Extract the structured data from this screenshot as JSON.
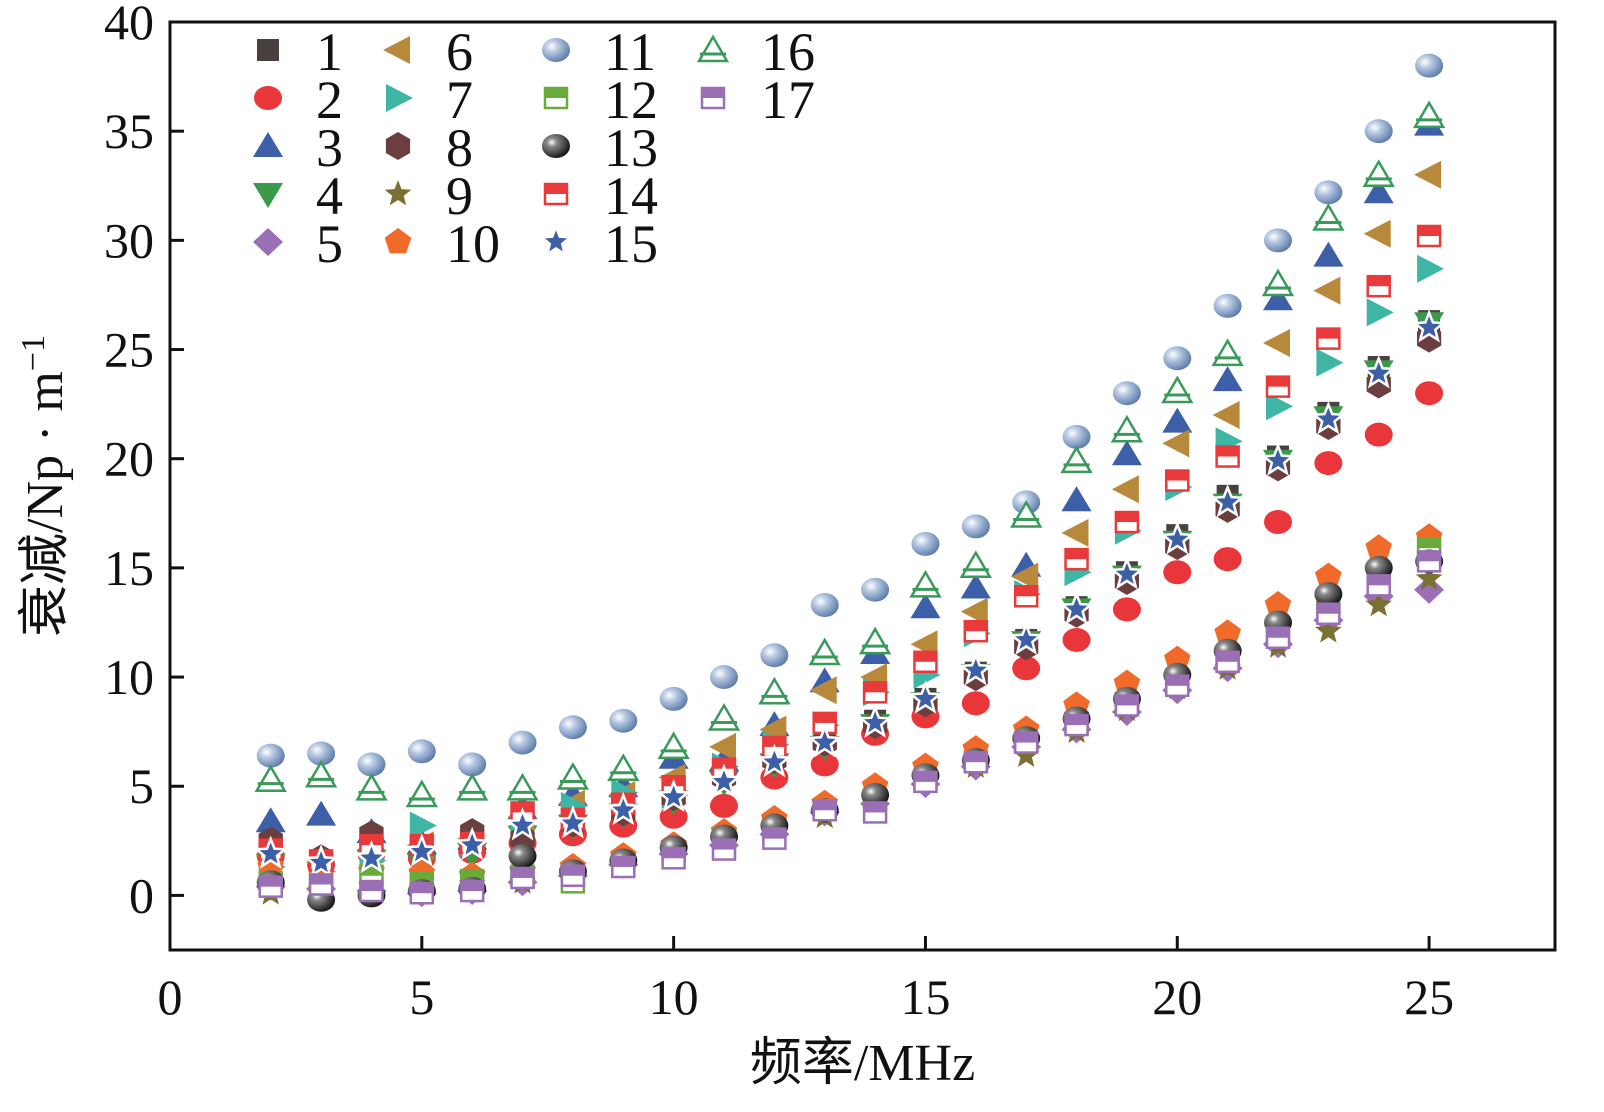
{
  "chart_data": {
    "type": "scatter",
    "title": "",
    "xlabel": "频率/MHz",
    "ylabel": "衰减/Np · m",
    "ylabel_superscript": "−1",
    "xlim": [
      0,
      27.5
    ],
    "ylim": [
      -2.5,
      40
    ],
    "xticks": [
      0,
      5,
      10,
      15,
      20,
      25
    ],
    "yticks": [
      0,
      5,
      10,
      15,
      20,
      25,
      30,
      35,
      40
    ],
    "grid": false,
    "legend_position": "top-left",
    "x": [
      2,
      3,
      4,
      5,
      6,
      7,
      8,
      9,
      10,
      11,
      12,
      13,
      14,
      15,
      16,
      17,
      18,
      19,
      20,
      21,
      22,
      23,
      24,
      25
    ],
    "series": [
      {
        "name": "1",
        "marker": "square",
        "color": "#4a4040",
        "values": [
          2.2,
          1.6,
          2.4,
          2.2,
          2.5,
          3.0,
          3.4,
          4.0,
          4.8,
          5.6,
          6.4,
          7.2,
          8.0,
          9.0,
          10.2,
          11.7,
          13.2,
          14.8,
          16.5,
          18.3,
          20.1,
          22.1,
          24.2,
          26.3
        ]
      },
      {
        "name": "2",
        "marker": "circle",
        "color": "#e8363a",
        "values": [
          1.8,
          1.4,
          1.9,
          1.7,
          2.0,
          2.4,
          2.8,
          3.2,
          3.6,
          4.1,
          5.4,
          6.0,
          7.4,
          8.2,
          8.8,
          10.4,
          11.7,
          13.1,
          14.8,
          15.4,
          17.1,
          19.8,
          21.1,
          23.0
        ]
      },
      {
        "name": "3",
        "marker": "triangle-up",
        "color": "#3d5fa8",
        "values": [
          3.4,
          3.7,
          2.9,
          2.4,
          2.6,
          4.0,
          4.6,
          5.0,
          6.3,
          6.2,
          7.8,
          9.8,
          11.1,
          13.2,
          14.1,
          15.1,
          18.1,
          20.2,
          21.7,
          23.6,
          27.3,
          29.3,
          32.2,
          35.3
        ]
      },
      {
        "name": "4",
        "marker": "triangle-down",
        "color": "#3a9a4a",
        "values": [
          1.4,
          1.2,
          1.6,
          1.4,
          1.9,
          2.7,
          3.2,
          3.7,
          4.3,
          5.2,
          6.0,
          6.8,
          7.8,
          8.8,
          10.1,
          11.6,
          13.1,
          14.6,
          16.2,
          17.9,
          19.9,
          21.9,
          24.0,
          26.2
        ]
      },
      {
        "name": "5",
        "marker": "diamond",
        "color": "#9b6fb5",
        "values": [
          0.4,
          0.3,
          0.2,
          0.1,
          0.2,
          0.6,
          0.9,
          1.4,
          1.9,
          2.3,
          2.8,
          3.8,
          4.2,
          5.1,
          5.9,
          6.8,
          7.6,
          8.4,
          9.4,
          10.4,
          11.5,
          12.6,
          13.7,
          14.0
        ]
      },
      {
        "name": "6",
        "marker": "triangle-left",
        "color": "#b8893a",
        "values": [
          1.8,
          1.5,
          2.1,
          2.3,
          2.6,
          3.6,
          4.2,
          4.6,
          5.4,
          6.8,
          7.6,
          9.4,
          10.0,
          11.5,
          13.0,
          14.6,
          16.6,
          18.6,
          20.7,
          22.0,
          25.3,
          27.7,
          30.3,
          33.0
        ]
      },
      {
        "name": "7",
        "marker": "triangle-right",
        "color": "#3fb5a5",
        "values": [
          1.3,
          1.1,
          1.6,
          3.2,
          2.4,
          3.4,
          4.1,
          4.7,
          4.6,
          5.9,
          6.9,
          7.8,
          9.3,
          10.1,
          12.0,
          13.8,
          14.8,
          16.7,
          18.7,
          20.8,
          22.4,
          24.4,
          26.7,
          28.7
        ]
      },
      {
        "name": "8",
        "marker": "hexagon",
        "color": "#6b3f3f",
        "values": [
          2.5,
          1.7,
          2.8,
          2.2,
          2.9,
          2.6,
          3.3,
          3.8,
          4.5,
          5.4,
          6.2,
          7.0,
          7.8,
          8.8,
          10.0,
          11.4,
          12.9,
          14.4,
          16.0,
          17.7,
          19.6,
          21.5,
          23.4,
          25.5
        ]
      },
      {
        "name": "9",
        "marker": "star",
        "color": "#7a7032",
        "values": [
          0.1,
          0.2,
          0.4,
          0.3,
          0.5,
          0.6,
          1.0,
          1.5,
          1.9,
          2.5,
          3.2,
          3.6,
          4.3,
          5.3,
          5.9,
          6.4,
          7.5,
          8.5,
          9.5,
          10.4,
          11.4,
          12.1,
          13.3,
          14.5
        ]
      },
      {
        "name": "10",
        "marker": "pentagon",
        "color": "#f06a2a",
        "values": [
          1.3,
          1.0,
          1.1,
          1.0,
          0.9,
          1.1,
          1.3,
          1.8,
          2.3,
          2.9,
          3.5,
          4.2,
          5.0,
          5.9,
          6.7,
          7.6,
          8.7,
          9.7,
          10.8,
          12.0,
          13.3,
          14.6,
          15.9,
          16.4
        ]
      },
      {
        "name": "11",
        "marker": "sphere",
        "color": "#7a97c2",
        "values": [
          6.4,
          6.5,
          6.0,
          6.6,
          6.0,
          7.0,
          7.7,
          8.0,
          9.0,
          10.0,
          11.0,
          13.3,
          14.0,
          16.1,
          16.9,
          18.0,
          21.0,
          23.0,
          24.6,
          27.0,
          30.0,
          32.2,
          35.0,
          38.0
        ]
      },
      {
        "name": "12",
        "marker": "square-half",
        "color": "#6aaa3a",
        "values": [
          0.6,
          0.5,
          0.9,
          0.6,
          0.7,
          0.9,
          0.6,
          1.4,
          2.0,
          2.6,
          3.0,
          3.9,
          4.4,
          5.3,
          6.1,
          7.0,
          7.9,
          8.8,
          9.8,
          10.9,
          12.1,
          13.4,
          14.7,
          15.9
        ]
      },
      {
        "name": "13",
        "marker": "dark-sphere",
        "color": "#2b2b2b",
        "values": [
          0.6,
          -0.2,
          0.0,
          0.2,
          0.3,
          1.8,
          1.1,
          1.6,
          2.2,
          2.7,
          3.2,
          3.9,
          4.6,
          5.5,
          6.2,
          7.2,
          8.1,
          9.0,
          10.1,
          11.2,
          12.5,
          13.8,
          15.0,
          15.3
        ]
      },
      {
        "name": "14",
        "marker": "square-half",
        "color": "#e83a3a",
        "values": [
          2.1,
          1.6,
          2.3,
          2.3,
          2.4,
          3.8,
          3.5,
          4.2,
          5.0,
          5.8,
          6.8,
          7.9,
          9.3,
          10.7,
          12.1,
          13.7,
          15.4,
          17.1,
          19.0,
          20.1,
          23.3,
          25.5,
          27.9,
          30.2
        ]
      },
      {
        "name": "15",
        "marker": "star-outline",
        "color": "#3d5fa8",
        "values": [
          1.9,
          1.5,
          1.7,
          2.0,
          2.3,
          3.2,
          3.3,
          3.9,
          4.5,
          5.2,
          6.1,
          7.0,
          7.9,
          9.0,
          10.3,
          11.7,
          13.1,
          14.7,
          16.3,
          18.0,
          19.9,
          21.8,
          23.9,
          26.0
        ]
      },
      {
        "name": "16",
        "marker": "triangle-open",
        "color": "#3a9a5a",
        "values": [
          5.3,
          5.5,
          4.9,
          4.6,
          4.9,
          4.9,
          5.4,
          5.8,
          6.8,
          8.1,
          9.3,
          11.1,
          11.6,
          14.2,
          15.1,
          17.4,
          19.9,
          21.3,
          23.1,
          24.8,
          28.0,
          31.0,
          33.0,
          35.7
        ]
      },
      {
        "name": "17",
        "marker": "square-half",
        "color": "#9b6fb5",
        "values": [
          0.4,
          0.5,
          0.2,
          0.1,
          0.2,
          0.8,
          0.9,
          1.3,
          1.7,
          2.1,
          2.6,
          3.9,
          3.8,
          5.2,
          6.1,
          7.0,
          7.8,
          8.7,
          9.6,
          10.7,
          11.8,
          12.9,
          14.2,
          15.3
        ]
      }
    ]
  }
}
